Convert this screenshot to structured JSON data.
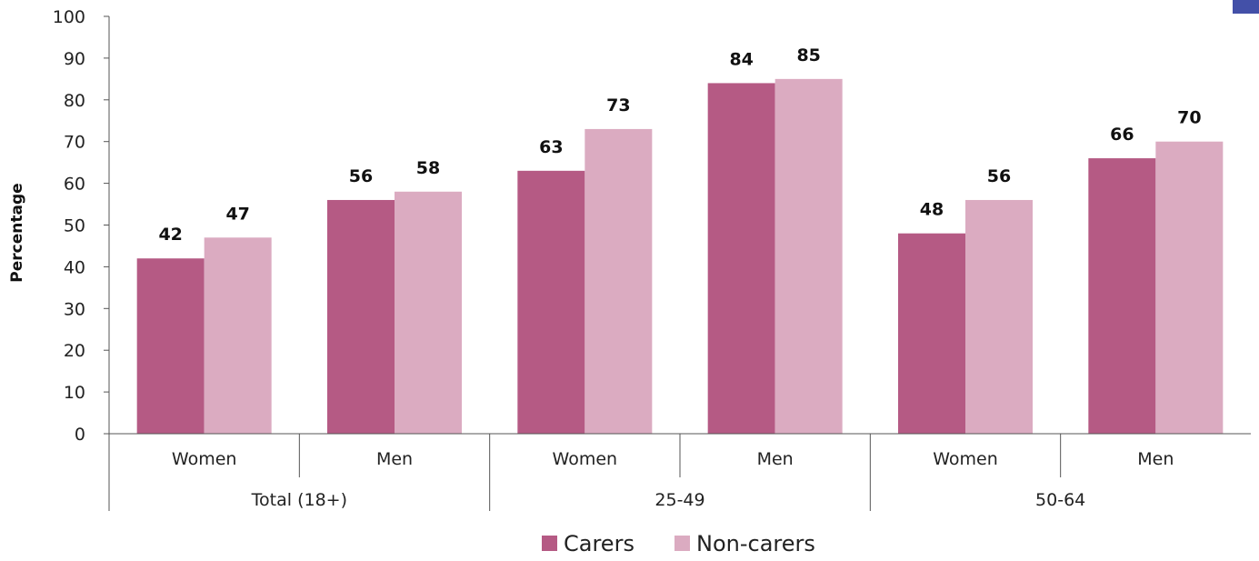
{
  "chart_data": {
    "type": "bar",
    "ylabel": "Percentage",
    "ylim": [
      0,
      100
    ],
    "yticks": [
      0,
      10,
      20,
      30,
      40,
      50,
      60,
      70,
      80,
      90,
      100
    ],
    "groups": [
      {
        "label": "Total (18+)",
        "categories": [
          "Women",
          "Men"
        ]
      },
      {
        "label": "25-49",
        "categories": [
          "Women",
          "Men"
        ]
      },
      {
        "label": "50-64",
        "categories": [
          "Women",
          "Men"
        ]
      }
    ],
    "series": [
      {
        "name": "Carers",
        "color": "#b55a84",
        "values": [
          42,
          56,
          63,
          84,
          48,
          66
        ]
      },
      {
        "name": "Non-carers",
        "color": "#dbabc1",
        "values": [
          47,
          58,
          73,
          85,
          56,
          70
        ]
      }
    ],
    "legend_position": "bottom",
    "grid": false
  },
  "corner_swatch_color": "#4350a8"
}
